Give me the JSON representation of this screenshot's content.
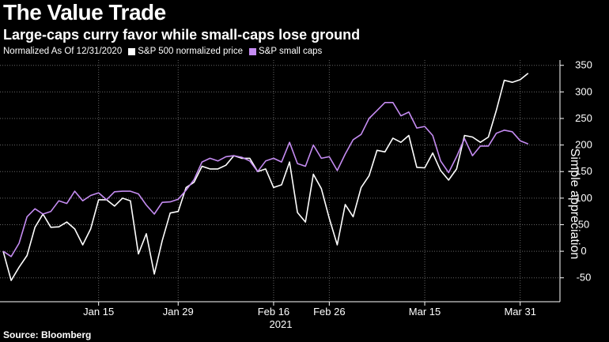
{
  "header": {
    "title": "The Value Trade",
    "subtitle": "Large-caps curry favor while small-caps lose ground"
  },
  "legend": {
    "note": "Normalized As Of 12/31/2020",
    "items": [
      {
        "label": "S&P 500 normalized price",
        "color": "#ffffff"
      },
      {
        "label": "S&P small caps",
        "color": "#c58cf2"
      }
    ]
  },
  "source": "Source: Bloomberg",
  "chart_data": {
    "type": "line",
    "title": "The Value Trade",
    "subtitle": "Large-caps curry favor while small-caps lose ground",
    "xlabel": "2021",
    "ylabel": "Simple appreciation",
    "ylim": [
      -95,
      360
    ],
    "yticks": [
      -50,
      0,
      50,
      100,
      150,
      200,
      250,
      300,
      350
    ],
    "xticks": [
      "Jan 15",
      "Jan 29",
      "Feb 16",
      "Feb 26",
      "Mar 15",
      "Mar 31"
    ],
    "xtick_positions": [
      12,
      22,
      34,
      41,
      53,
      65
    ],
    "x_range": [
      0,
      70
    ],
    "grid": true,
    "legend_position": "top-left",
    "series": [
      {
        "name": "S&P 500 normalized price",
        "color": "#ffffff",
        "values": [
          0,
          -55,
          -30,
          -8,
          45,
          70,
          45,
          46,
          55,
          42,
          12,
          42,
          97,
          97,
          85,
          100,
          95,
          -5,
          33,
          -43,
          20,
          72,
          75,
          120,
          130,
          160,
          155,
          155,
          162,
          180,
          175,
          175,
          150,
          155,
          120,
          125,
          168,
          73,
          55,
          145,
          118,
          62,
          12,
          88,
          65,
          120,
          142,
          190,
          187,
          213,
          205,
          218,
          158,
          157,
          185,
          152,
          134,
          155,
          218,
          215,
          205,
          215,
          265,
          322,
          318,
          323,
          335
        ]
      },
      {
        "name": "S&P small caps",
        "color": "#c58cf2",
        "values": [
          0,
          -10,
          15,
          65,
          80,
          70,
          75,
          95,
          90,
          113,
          95,
          105,
          110,
          97,
          112,
          113,
          113,
          108,
          87,
          70,
          92,
          93,
          98,
          115,
          135,
          168,
          175,
          170,
          178,
          180,
          177,
          170,
          150,
          170,
          175,
          168,
          205,
          165,
          160,
          200,
          175,
          178,
          152,
          183,
          210,
          220,
          250,
          265,
          280,
          280,
          255,
          262,
          232,
          235,
          218,
          170,
          148,
          178,
          212,
          180,
          198,
          198,
          222,
          228,
          225,
          208,
          202
        ]
      }
    ]
  }
}
